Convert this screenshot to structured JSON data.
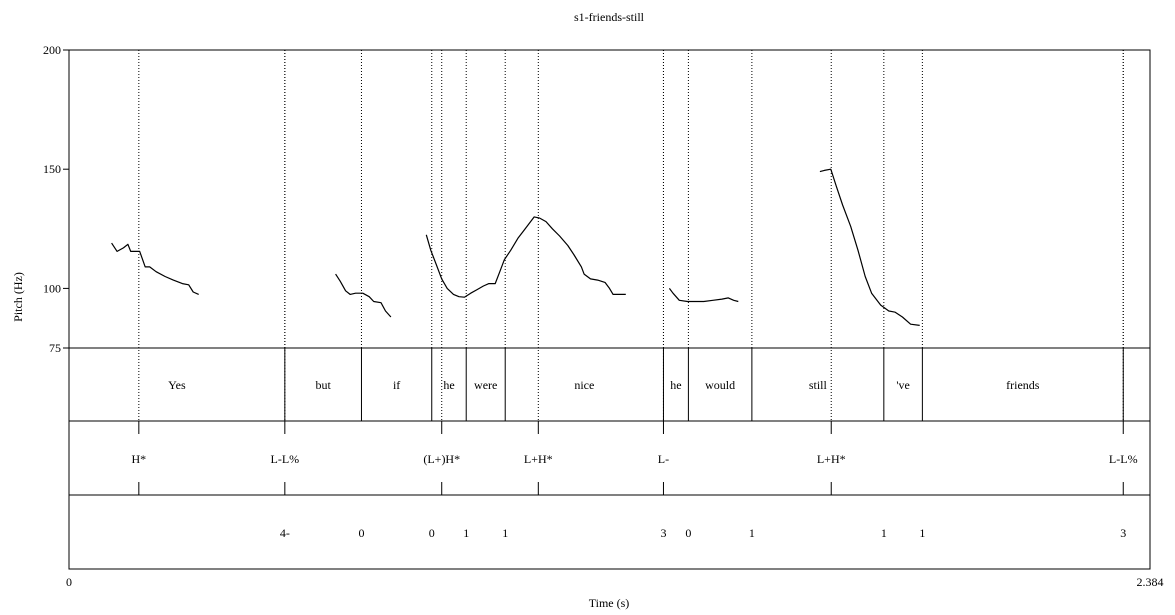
{
  "chart_data": {
    "type": "line",
    "title": "s1-friends-still",
    "xlabel": "Time (s)",
    "ylabel": "Pitch (Hz)",
    "xlim": [
      0,
      2.384
    ],
    "xlim_labels": [
      "0",
      "2.384"
    ],
    "ylim": [
      75,
      200
    ],
    "yticks": [
      {
        "value": 200,
        "label": "200"
      },
      {
        "value": 150,
        "label": "150"
      },
      {
        "value": 100,
        "label": "100"
      },
      {
        "value": 75,
        "label": "75"
      }
    ],
    "pitch_segments": [
      [
        [
          0.094,
          119
        ],
        [
          0.106,
          115.5
        ],
        [
          0.12,
          117
        ],
        [
          0.13,
          118.5
        ],
        [
          0.136,
          115.5
        ],
        [
          0.156,
          115.5
        ],
        [
          0.168,
          109
        ],
        [
          0.178,
          109
        ],
        [
          0.192,
          107
        ],
        [
          0.212,
          105
        ],
        [
          0.23,
          103.5
        ],
        [
          0.25,
          102
        ],
        [
          0.264,
          101.5
        ],
        [
          0.274,
          98.5
        ],
        [
          0.286,
          97.5
        ]
      ],
      [
        [
          0.588,
          106
        ],
        [
          0.598,
          103
        ],
        [
          0.61,
          99
        ],
        [
          0.62,
          97.5
        ],
        [
          0.632,
          98
        ],
        [
          0.648,
          98
        ],
        [
          0.662,
          96.5
        ],
        [
          0.672,
          94.5
        ],
        [
          0.688,
          94
        ],
        [
          0.698,
          90.5
        ],
        [
          0.71,
          88
        ]
      ],
      [
        [
          0.788,
          122.5
        ],
        [
          0.798,
          116
        ],
        [
          0.81,
          110
        ],
        [
          0.822,
          104
        ],
        [
          0.834,
          100
        ],
        [
          0.848,
          97.5
        ],
        [
          0.86,
          96.5
        ],
        [
          0.872,
          96.3
        ],
        [
          0.886,
          98
        ],
        [
          0.9,
          99.5
        ],
        [
          0.914,
          101
        ],
        [
          0.926,
          102
        ],
        [
          0.94,
          102
        ],
        [
          0.95,
          107
        ],
        [
          0.96,
          112
        ],
        [
          0.974,
          116
        ],
        [
          0.99,
          121
        ],
        [
          1.002,
          124
        ],
        [
          1.014,
          127
        ],
        [
          1.026,
          130
        ],
        [
          1.038,
          129.5
        ],
        [
          1.052,
          128
        ],
        [
          1.066,
          125
        ],
        [
          1.082,
          122
        ],
        [
          1.1,
          118
        ],
        [
          1.114,
          114
        ],
        [
          1.13,
          109
        ],
        [
          1.136,
          106
        ],
        [
          1.15,
          104
        ],
        [
          1.166,
          103.5
        ],
        [
          1.182,
          102.5
        ],
        [
          1.192,
          100
        ],
        [
          1.2,
          97.5
        ],
        [
          1.216,
          97.5
        ],
        [
          1.228,
          97.5
        ]
      ],
      [
        [
          1.324,
          100
        ],
        [
          1.332,
          98
        ],
        [
          1.346,
          95
        ],
        [
          1.364,
          94.5
        ],
        [
          1.382,
          94.5
        ],
        [
          1.4,
          94.5
        ],
        [
          1.42,
          95
        ],
        [
          1.44,
          95.5
        ],
        [
          1.454,
          96
        ],
        [
          1.466,
          95
        ],
        [
          1.476,
          94.5
        ]
      ],
      [
        [
          1.656,
          149
        ],
        [
          1.666,
          149.5
        ],
        [
          1.68,
          150
        ],
        [
          1.692,
          143
        ],
        [
          1.706,
          135
        ],
        [
          1.724,
          126
        ],
        [
          1.74,
          116
        ],
        [
          1.756,
          105
        ],
        [
          1.77,
          98
        ],
        [
          1.79,
          93
        ],
        [
          1.808,
          90.5
        ],
        [
          1.822,
          90
        ],
        [
          1.838,
          88
        ],
        [
          1.856,
          85
        ],
        [
          1.876,
          84.5
        ]
      ]
    ],
    "x_marker_labels": [
      {
        "value": 0.313,
        "label": "Yes"
      },
      {
        "value": 0.685,
        "label": "but"
      },
      {
        "value": 1.12,
        "label": "if"
      }
    ],
    "tiers": {
      "words": [
        {
          "label": "Yes",
          "start": 0,
          "end": 0.476
        },
        {
          "label": "but",
          "start": 0.476,
          "end": 0.645
        },
        {
          "label": "if",
          "start": 0.645,
          "end": 0.8
        },
        {
          "label": "he",
          "start": 0.8,
          "end": 0.876
        },
        {
          "label": "were",
          "start": 0.876,
          "end": 0.962
        },
        {
          "label": "nice",
          "start": 0.962,
          "end": 1.311
        },
        {
          "label": "he",
          "start": 1.311,
          "end": 1.366
        },
        {
          "label": "would",
          "start": 1.366,
          "end": 1.506
        },
        {
          "label": "still",
          "start": 1.506,
          "end": 1.797
        },
        {
          "label": "'ve",
          "start": 1.797,
          "end": 1.882
        },
        {
          "label": "friends",
          "start": 1.882,
          "end": 2.325
        },
        {
          "label": "",
          "start": 2.325,
          "end": 2.384
        }
      ],
      "tones": [
        {
          "label": "H*",
          "time": 0.154
        },
        {
          "label": "L-L%",
          "time": 0.476
        },
        {
          "label": "(L+)H*",
          "time": 0.822
        },
        {
          "label": "L+H*",
          "time": 1.035
        },
        {
          "label": "L-",
          "time": 1.311
        },
        {
          "label": "L+H*",
          "time": 1.681
        },
        {
          "label": "L-L%",
          "time": 2.325
        }
      ],
      "breaks": [
        {
          "label": "4-",
          "time": 0.476
        },
        {
          "label": "0",
          "time": 0.645
        },
        {
          "label": "0",
          "time": 0.8
        },
        {
          "label": "1",
          "time": 0.876
        },
        {
          "label": "1",
          "time": 0.962
        },
        {
          "label": "3",
          "time": 1.311
        },
        {
          "label": "0",
          "time": 1.366
        },
        {
          "label": "1",
          "time": 1.506
        },
        {
          "label": "1",
          "time": 1.797
        },
        {
          "label": "1",
          "time": 1.882
        },
        {
          "label": "3",
          "time": 2.325
        }
      ]
    }
  }
}
